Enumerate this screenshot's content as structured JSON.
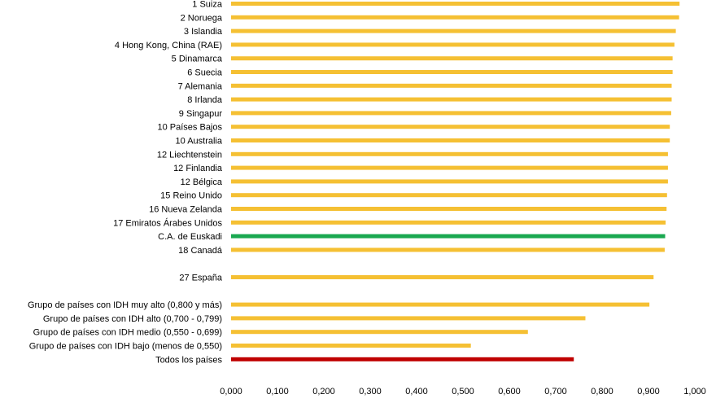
{
  "chart_data": {
    "type": "bar",
    "orientation": "horizontal",
    "title": "",
    "xlabel": "",
    "ylabel": "",
    "xlim": [
      0,
      1
    ],
    "grid": false,
    "legend": "none",
    "xticks": [
      "0,000",
      "0,100",
      "0,200",
      "0,300",
      "0,400",
      "0,500",
      "0,600",
      "0,700",
      "0,800",
      "0,900",
      "1,000"
    ],
    "colors": {
      "default": "#f5c033",
      "highlight_region": "#1aa850",
      "highlight_total": "#c00000"
    },
    "categories": [
      {
        "label": "1 Suiza",
        "value": 0.967,
        "color": "default"
      },
      {
        "label": "2 Noruega",
        "value": 0.966,
        "color": "default"
      },
      {
        "label": "3 Islandia",
        "value": 0.959,
        "color": "default"
      },
      {
        "label": "4 Hong Kong, China (RAE)",
        "value": 0.956,
        "color": "default"
      },
      {
        "label": "5 Dinamarca",
        "value": 0.952,
        "color": "default"
      },
      {
        "label": "6 Suecia",
        "value": 0.952,
        "color": "default"
      },
      {
        "label": "7 Alemania",
        "value": 0.95,
        "color": "default"
      },
      {
        "label": "8 Irlanda",
        "value": 0.95,
        "color": "default"
      },
      {
        "label": "9 Singapur",
        "value": 0.949,
        "color": "default"
      },
      {
        "label": "10 Países Bajos",
        "value": 0.946,
        "color": "default"
      },
      {
        "label": "10 Australia",
        "value": 0.946,
        "color": "default"
      },
      {
        "label": "12 Liechtenstein",
        "value": 0.942,
        "color": "default"
      },
      {
        "label": "12 Finlandia",
        "value": 0.942,
        "color": "default"
      },
      {
        "label": "12 Bélgica",
        "value": 0.942,
        "color": "default"
      },
      {
        "label": "15 Reino Unido",
        "value": 0.94,
        "color": "default"
      },
      {
        "label": "16 Nueva Zelanda",
        "value": 0.939,
        "color": "default"
      },
      {
        "label": "17 Emiratos Árabes Unidos",
        "value": 0.937,
        "color": "default"
      },
      {
        "label": "C.A. de Euskadi",
        "value": 0.936,
        "color": "highlight_region"
      },
      {
        "label": "18 Canadá",
        "value": 0.935,
        "color": "default"
      },
      {
        "label": "",
        "value": null,
        "color": "default"
      },
      {
        "label": "27 España",
        "value": 0.911,
        "color": "default"
      },
      {
        "label": "",
        "value": null,
        "color": "default"
      },
      {
        "label": "Grupo de países con IDH muy alto (0,800 y más)",
        "value": 0.902,
        "color": "default"
      },
      {
        "label": "Grupo de países con IDH  alto (0,700 - 0,799)",
        "value": 0.764,
        "color": "default"
      },
      {
        "label": "Grupo de países con IDH medio (0,550 - 0,699)",
        "value": 0.64,
        "color": "default"
      },
      {
        "label": "Grupo de países con IDH bajo (menos de 0,550)",
        "value": 0.517,
        "color": "default"
      },
      {
        "label": "Todos los países",
        "value": 0.739,
        "color": "highlight_total"
      }
    ]
  }
}
